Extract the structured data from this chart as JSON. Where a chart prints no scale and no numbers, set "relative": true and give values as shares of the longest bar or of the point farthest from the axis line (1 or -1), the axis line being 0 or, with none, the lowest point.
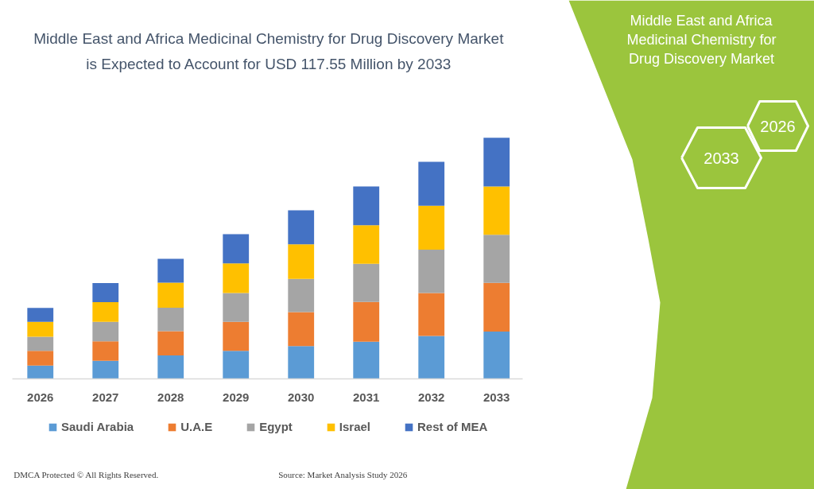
{
  "chart_data": {
    "type": "bar",
    "title": "Middle East and Africa Medicinal Chemistry for Drug Discovery Market is Expected to Account for USD 117.55 Million by 2033",
    "categories": [
      "2026",
      "2027",
      "2028",
      "2029",
      "2030",
      "2031",
      "2032",
      "2033"
    ],
    "stacked": true,
    "relative": true,
    "legend": "bottom",
    "series": [
      {
        "name": "Saudi Arabia",
        "color": "#5b9bd5",
        "values": [
          0.055,
          0.075,
          0.097,
          0.116,
          0.136,
          0.154,
          0.178,
          0.196
        ]
      },
      {
        "name": "U.A.E",
        "color": "#ed7d31",
        "values": [
          0.061,
          0.081,
          0.101,
          0.121,
          0.141,
          0.165,
          0.178,
          0.202
        ]
      },
      {
        "name": "Egypt",
        "color": "#a5a5a5",
        "values": [
          0.059,
          0.081,
          0.097,
          0.119,
          0.138,
          0.158,
          0.18,
          0.2
        ]
      },
      {
        "name": "Israel",
        "color": "#ffc000",
        "values": [
          0.062,
          0.081,
          0.104,
          0.123,
          0.143,
          0.16,
          0.182,
          0.2
        ]
      },
      {
        "name": "Rest of MEA",
        "color": "#4472c4",
        "values": [
          0.057,
          0.079,
          0.099,
          0.121,
          0.141,
          0.161,
          0.182,
          0.202
        ]
      }
    ],
    "annotations": [
      "DMCA Protected © All Rights Reserved.",
      "Source: Market Analysis Study 2026",
      "Middle East and Africa Medicinal Chemistry for Drug Discovery Market",
      "2026",
      "2033"
    ]
  }
}
